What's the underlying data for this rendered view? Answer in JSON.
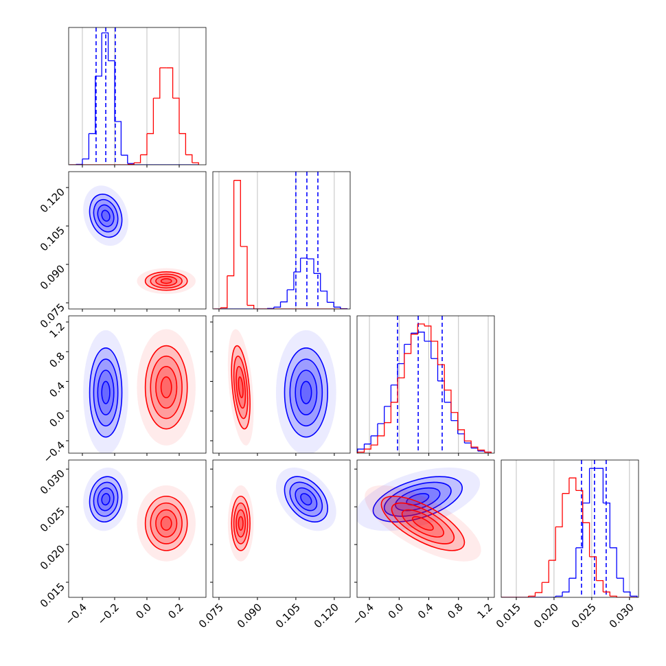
{
  "chart_data": {
    "type": "corner",
    "grid": true,
    "contour_levels": [
      0.5,
      1,
      1.5,
      2
    ],
    "parameters": [
      {
        "lim": [
          -0.485,
          0.366
        ],
        "ticks": [
          {
            "value": -0.4,
            "label": "−0.4"
          },
          {
            "value": -0.2,
            "label": "−0.2"
          },
          {
            "value": 0,
            "label": "0.0"
          },
          0.2
        ],
        "bins": [
          -0.48,
          -0.44,
          -0.4,
          -0.36,
          -0.32,
          -0.28,
          -0.24,
          -0.2,
          -0.16,
          -0.12,
          -0.08,
          -0.04,
          0,
          0.04,
          0.08,
          0.12,
          0.16,
          0.2,
          0.24,
          0.28,
          0.32
        ],
        "hist_ylim": [
          0,
          330
        ]
      },
      {
        "lim": [
          0.0726,
          0.1262
        ],
        "ticks": [
          0.075,
          {
            "value": 0.09,
            "label": "0.090"
          },
          0.105,
          {
            "value": 0.12,
            "label": "0.120"
          }
        ],
        "bins": [
          0.073,
          0.0756,
          0.0782,
          0.0808,
          0.0834,
          0.086,
          0.0886,
          0.0912,
          0.0938,
          0.0964,
          0.099,
          0.1016,
          0.1042,
          0.1068,
          0.1094,
          0.112,
          0.1146,
          0.1172,
          0.1198,
          0.1224,
          0.125
        ],
        "hist_ylim": [
          0,
          600
        ]
      },
      {
        "lim": [
          -0.567,
          1.283
        ],
        "ticks": [
          {
            "value": -0.4,
            "label": "−0.4"
          },
          {
            "value": 0,
            "label": "0.0"
          },
          0.4,
          0.8,
          1.2
        ],
        "bins": [
          -0.56,
          -0.47,
          -0.38,
          -0.29,
          -0.2,
          -0.11,
          -0.02,
          0.07,
          0.16,
          0.25,
          0.34,
          0.43,
          0.52,
          0.61,
          0.7,
          0.79,
          0.88,
          0.97,
          1.06,
          1.15,
          1.24
        ],
        "hist_ylim": [
          0,
          135
        ]
      },
      {
        "lim": [
          0.013,
          0.0312
        ],
        "ticks": [
          0.015,
          {
            "value": 0.02,
            "label": "0.020"
          },
          0.025,
          {
            "value": 0.03,
            "label": "0.030"
          }
        ],
        "bins": [
          0.013,
          0.0139,
          0.0148,
          0.0157,
          0.0166,
          0.0175,
          0.0184,
          0.0193,
          0.0202,
          0.0211,
          0.022,
          0.0229,
          0.0238,
          0.0247,
          0.0256,
          0.0265,
          0.0274,
          0.0283,
          0.0292,
          0.0301,
          0.031
        ],
        "hist_ylim": [
          0,
          230
        ]
      }
    ],
    "series": [
      {
        "color": "#0000ff",
        "counts": [
          [
            0,
            1,
            14,
            75,
            213,
            317,
            250,
            104,
            23,
            3,
            0,
            0,
            0,
            0,
            0,
            0,
            0,
            0,
            0,
            0
          ],
          [
            0,
            0,
            0,
            0,
            0,
            0,
            0,
            0,
            2,
            8,
            31,
            84,
            162,
            222,
            219,
            155,
            78,
            29,
            8,
            1
          ],
          [
            4,
            9,
            17,
            29,
            46,
            67,
            88,
            107,
            118,
            119,
            110,
            93,
            71,
            50,
            32,
            19,
            10,
            5,
            2,
            1
          ],
          [
            0,
            0,
            0,
            0,
            0,
            0,
            0,
            0,
            2,
            9,
            32,
            83,
            158,
            216,
            216,
            158,
            83,
            32,
            9,
            2
          ]
        ],
        "mean": [
          -0.255,
          0.109,
          0.25,
          0.026
        ],
        "std": [
          0.05,
          0.0042,
          0.3,
          0.0015
        ],
        "corr": [
          [
            1,
            -0.2,
            0,
            0.1
          ],
          [
            -0.2,
            1,
            0,
            -0.4
          ],
          [
            0,
            0,
            1,
            0.5
          ],
          [
            0.1,
            -0.4,
            0.5,
            1
          ]
        ],
        "quantiles": [
          [
            -0.315,
            -0.255,
            -0.196
          ],
          [
            0.105,
            0.1093,
            0.1136
          ],
          [
            -0.021,
            0.257,
            0.58
          ],
          [
            0.02364,
            0.02536,
            0.02691
          ]
        ]
      },
      {
        "color": "#ff0000",
        "counts": [
          [
            0,
            0,
            0,
            0,
            0,
            0,
            0,
            0,
            0,
            1,
            5,
            24,
            75,
            160,
            233,
            233,
            160,
            75,
            24,
            5
          ],
          [
            0,
            5,
            145,
            562,
            273,
            16,
            0,
            0,
            0,
            0,
            0,
            0,
            0,
            0,
            0,
            0,
            0,
            0,
            0,
            0
          ],
          [
            1,
            4,
            8,
            17,
            30,
            50,
            74,
            98,
            117,
            127,
            125,
            110,
            87,
            62,
            40,
            23,
            12,
            6,
            3,
            1
          ],
          [
            0,
            0,
            0,
            0,
            2,
            8,
            25,
            62,
            118,
            174,
            200,
            179,
            125,
            68,
            28,
            9,
            2,
            0,
            0,
            0
          ]
        ],
        "mean": [
          0.12,
          0.0835,
          0.32,
          0.0228
        ],
        "std": [
          0.065,
          0.0018,
          0.28,
          0.0018
        ],
        "corr": [
          [
            1,
            0,
            0,
            0
          ],
          [
            0,
            1,
            -0.4,
            0
          ],
          [
            0,
            -0.4,
            1,
            -0.7
          ],
          [
            0,
            0,
            -0.7,
            1
          ]
        ]
      }
    ]
  }
}
